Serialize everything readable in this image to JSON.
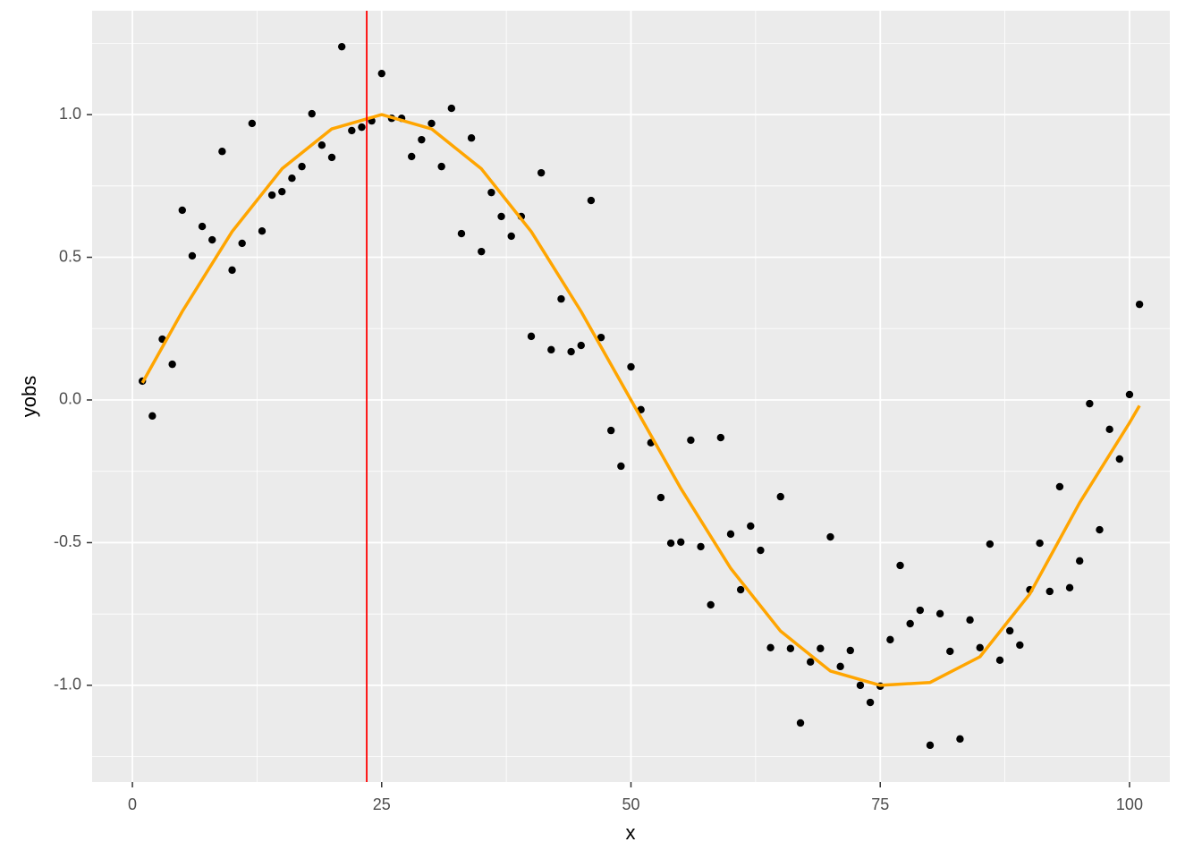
{
  "chart_data": {
    "type": "scatter",
    "x_label": "x",
    "y_label": "yobs",
    "xlim": [
      -4.04,
      104.04
    ],
    "ylim": [
      -1.339,
      1.364
    ],
    "xticks": [
      0,
      25,
      50,
      75,
      100
    ],
    "yticks": [
      {
        "value": -1,
        "label": "-1.0"
      },
      {
        "value": -0.5,
        "label": "-0.5"
      },
      {
        "value": 0,
        "label": "0.0"
      },
      {
        "value": 0.5,
        "label": "0.5"
      },
      {
        "value": 1,
        "label": "1.0"
      }
    ],
    "xminor": [
      12.5,
      37.5,
      62.5,
      87.5
    ],
    "yminor": [
      -1.25,
      -0.75,
      -0.25,
      0.25,
      0.75,
      1.25
    ],
    "grid": true,
    "points": {
      "color": "#000000",
      "x": [
        1,
        2,
        3,
        4,
        5,
        6,
        7,
        8,
        9,
        10,
        11,
        12,
        13,
        14,
        15,
        16,
        17,
        18,
        19,
        20,
        21,
        22,
        23,
        24,
        25,
        26,
        27,
        28,
        29,
        30,
        31,
        32,
        33,
        34,
        35,
        36,
        37,
        38,
        39,
        40,
        41,
        42,
        43,
        44,
        45,
        46,
        47,
        48,
        49,
        50,
        51,
        52,
        53,
        54,
        55,
        56,
        57,
        58,
        59,
        60,
        61,
        62,
        63,
        64,
        65,
        66,
        67,
        68,
        69,
        70,
        71,
        72,
        73,
        74,
        75,
        76,
        77,
        78,
        79,
        80,
        81,
        82,
        83,
        84,
        85,
        86,
        87,
        88,
        89,
        90,
        91,
        92,
        93,
        94,
        95,
        96,
        97,
        98,
        99,
        100,
        101
      ],
      "y": [
        0.066,
        -0.056,
        0.213,
        0.125,
        0.665,
        0.505,
        0.608,
        0.561,
        0.871,
        0.455,
        0.549,
        0.969,
        0.592,
        0.718,
        0.73,
        0.777,
        0.818,
        1.003,
        0.893,
        0.85,
        1.238,
        0.944,
        0.956,
        0.978,
        1.144,
        0.987,
        0.987,
        0.853,
        0.912,
        0.969,
        0.818,
        1.022,
        0.583,
        0.918,
        0.52,
        0.727,
        0.643,
        0.574,
        0.643,
        0.223,
        0.796,
        0.176,
        0.354,
        0.169,
        0.191,
        0.699,
        0.219,
        -0.107,
        -0.232,
        0.116,
        -0.034,
        -0.15,
        -0.342,
        -0.502,
        -0.498,
        -0.141,
        -0.514,
        -0.718,
        -0.132,
        -0.47,
        -0.665,
        -0.442,
        -0.527,
        -0.868,
        -0.339,
        -0.871,
        -1.132,
        -0.918,
        -0.871,
        -0.48,
        -0.934,
        -0.878,
        -1.0,
        -1.06,
        -1.003,
        -0.84,
        -0.58,
        -0.784,
        -0.737,
        -1.21,
        -0.749,
        -0.881,
        -1.188,
        -0.771,
        -0.868,
        -0.505,
        -0.912,
        -0.809,
        -0.859,
        -0.665,
        -0.502,
        -0.671,
        -0.304,
        -0.658,
        -0.564,
        -0.013,
        -0.455,
        -0.103,
        -0.207,
        0.019,
        0.335
      ]
    },
    "line": {
      "color": "#ffa500",
      "x": [
        1,
        5,
        10,
        15,
        20,
        25,
        30,
        35,
        40,
        45,
        50,
        55,
        60,
        65,
        70,
        75,
        80,
        85,
        90,
        95,
        100,
        101
      ],
      "y": [
        0.06,
        0.31,
        0.59,
        0.81,
        0.95,
        1.0,
        0.95,
        0.81,
        0.59,
        0.31,
        0.0,
        -0.31,
        -0.59,
        -0.81,
        -0.95,
        -1.0,
        -0.99,
        -0.9,
        -0.68,
        -0.36,
        -0.08,
        -0.02
      ]
    },
    "vline": {
      "x": 23.5,
      "color": "#ff0000"
    }
  }
}
